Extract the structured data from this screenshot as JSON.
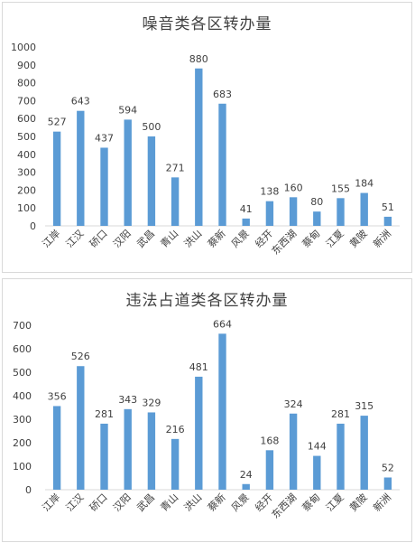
{
  "chart_data": [
    {
      "type": "bar",
      "title": "噪音类各区转办量",
      "categories": [
        "江岸",
        "江汉",
        "硚口",
        "汉阳",
        "武昌",
        "青山",
        "洪山",
        "蔡新",
        "风景",
        "经开",
        "东西湖",
        "蔡甸",
        "江夏",
        "黄陂",
        "新洲"
      ],
      "values": [
        527,
        643,
        437,
        594,
        500,
        271,
        880,
        683,
        41,
        138,
        160,
        80,
        155,
        184,
        51
      ],
      "ylim": [
        0,
        1000
      ],
      "yticks": [
        0,
        100,
        200,
        300,
        400,
        500,
        600,
        700,
        800,
        900,
        1000
      ],
      "grid": false,
      "bar_color": "#5b9bd5",
      "xlabel": "",
      "ylabel": ""
    },
    {
      "type": "bar",
      "title": "违法占道类各区转办量",
      "categories": [
        "江岸",
        "江汉",
        "硚口",
        "汉阳",
        "武昌",
        "青山",
        "洪山",
        "蔡新",
        "风景",
        "经开",
        "东西湖",
        "蔡甸",
        "江夏",
        "黄陂",
        "新洲"
      ],
      "values": [
        356,
        526,
        281,
        343,
        329,
        216,
        481,
        664,
        24,
        168,
        324,
        144,
        281,
        315,
        52
      ],
      "ylim": [
        0,
        700
      ],
      "yticks": [
        0,
        100,
        200,
        300,
        400,
        500,
        600,
        700
      ],
      "grid": false,
      "bar_color": "#5b9bd5",
      "xlabel": "",
      "ylabel": ""
    }
  ]
}
